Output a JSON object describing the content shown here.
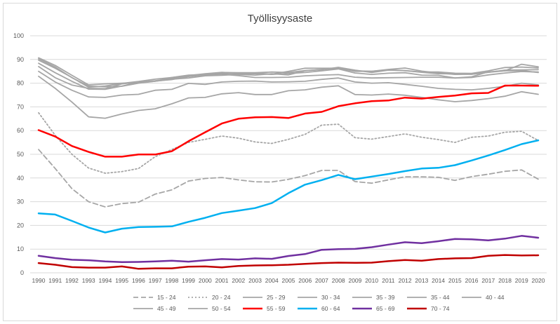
{
  "chart_data": {
    "type": "line",
    "title": "Työllisyysaste",
    "xlabel": "",
    "ylabel": "",
    "ylim": [
      0,
      100
    ],
    "yticks": [
      0,
      10,
      20,
      30,
      40,
      50,
      60,
      70,
      80,
      90,
      100
    ],
    "grid": true,
    "legend": "bottom",
    "categories": [
      "1990",
      "1991",
      "1992",
      "1993",
      "1994",
      "1995",
      "1996",
      "1997",
      "1998",
      "1999",
      "2000",
      "2001",
      "2002",
      "2003",
      "2004",
      "2005",
      "2006",
      "2007",
      "2008",
      "2009",
      "2010",
      "2011",
      "2012",
      "2013",
      "2014",
      "2015",
      "2016",
      "2017",
      "2018",
      "2019",
      "2020"
    ],
    "series": [
      {
        "name": "15 - 24",
        "color": "#a6a6a6",
        "style": "dashed",
        "values": [
          52,
          44,
          35.5,
          30,
          27.8,
          29.2,
          29.8,
          33.2,
          35,
          38.7,
          39.8,
          40.2,
          39.2,
          38.4,
          38.3,
          39.4,
          41,
          43.2,
          43.2,
          38.5,
          37.8,
          39.2,
          40.5,
          40.5,
          40.3,
          39,
          40.6,
          41.6,
          42.8,
          43.4,
          39.5
        ]
      },
      {
        "name": "20 - 24",
        "color": "#a6a6a6",
        "style": "dotted",
        "values": [
          67.5,
          58,
          50,
          44.2,
          42,
          42.7,
          44,
          49,
          52,
          55,
          56.3,
          57.7,
          56.8,
          55.2,
          54.6,
          56.3,
          58.4,
          62.3,
          62.7,
          57,
          56.4,
          57.5,
          58.6,
          57.2,
          56.2,
          55,
          57.2,
          57.7,
          59.3,
          59.7,
          55.8
        ]
      },
      {
        "name": "25 - 29",
        "color": "#a6a6a6",
        "style": "solid",
        "values": [
          82.9,
          77.8,
          72,
          65.8,
          65.2,
          67,
          68.5,
          69.2,
          71.3,
          73.8,
          74,
          75.5,
          76,
          75.2,
          75.2,
          76.8,
          77.2,
          78.3,
          78.9,
          75.2,
          75,
          75.4,
          74.9,
          74,
          73,
          72.2,
          72.7,
          73.5,
          74.5,
          76.4,
          75.3
        ]
      },
      {
        "name": "30 - 34",
        "color": "#a6a6a6",
        "style": "solid",
        "values": [
          85,
          80.5,
          77,
          74.2,
          74,
          75,
          75.3,
          77,
          77.4,
          79.9,
          79.5,
          80.5,
          80.8,
          80.9,
          80.5,
          80.6,
          80.8,
          81.6,
          82.2,
          80.5,
          80,
          80.2,
          79.5,
          78.7,
          77.8,
          77.4,
          77.2,
          77.8,
          78.7,
          80,
          79.3
        ]
      },
      {
        "name": "35 - 39",
        "color": "#a6a6a6",
        "style": "solid",
        "values": [
          87,
          82.3,
          79.2,
          77.8,
          77.7,
          79.7,
          80.4,
          80.9,
          81.5,
          82.8,
          83.5,
          83.8,
          83.2,
          82.4,
          82.4,
          82.5,
          83.1,
          83.4,
          83.6,
          82.5,
          82.2,
          82.3,
          82.4,
          82.5,
          82.5,
          82.2,
          82.4,
          83.5,
          84.3,
          84.9,
          84.7
        ]
      },
      {
        "name": "35 - 44",
        "color": "#a6a6a6",
        "style": "solid",
        "values": [
          88.4,
          84.4,
          80.8,
          77.5,
          77.4,
          78.8,
          80.4,
          81,
          82,
          83.2,
          84,
          84.6,
          84.2,
          84.3,
          83.8,
          85,
          86.3,
          86.3,
          86.3,
          85,
          85,
          85.6,
          85.3,
          84.6,
          84,
          83.9,
          83.8,
          84.6,
          85.5,
          85.6,
          85.7
        ]
      },
      {
        "name": "40 - 44",
        "color": "#a6a6a6",
        "style": "solid",
        "values": [
          89.7,
          86.3,
          82.4,
          78.3,
          78.8,
          79.9,
          80.7,
          81.7,
          82.4,
          83.4,
          83.7,
          84.5,
          84.4,
          84.4,
          84.7,
          84.5,
          85.3,
          85.7,
          86.7,
          85.5,
          84.5,
          85.5,
          85.3,
          84.7,
          84.7,
          84.2,
          84.1,
          85.2,
          86.6,
          86.8,
          86.4
        ]
      },
      {
        "name": "45 - 49",
        "color": "#a6a6a6",
        "style": "solid",
        "values": [
          90.3,
          86.8,
          82.3,
          78.8,
          78.5,
          78.7,
          80,
          80.8,
          82.4,
          83.2,
          83.6,
          84.1,
          84,
          84,
          83.7,
          84.1,
          84.5,
          85.2,
          86,
          84.3,
          83.7,
          84.2,
          84.4,
          83.4,
          83.3,
          82.2,
          82.7,
          84.8,
          85.2,
          85.3,
          84.5
        ]
      },
      {
        "name": "50 - 54",
        "color": "#a6a6a6",
        "style": "solid",
        "values": [
          90.7,
          87.5,
          83.3,
          79.3,
          79.7,
          80,
          80.2,
          80.8,
          81.7,
          82.2,
          83.1,
          83.3,
          83.7,
          83.4,
          84,
          83.5,
          85.2,
          85.8,
          86.3,
          85.2,
          85,
          85.8,
          86.4,
          85.1,
          84.3,
          83.7,
          83.8,
          84.6,
          85.2,
          88,
          86.9
        ]
      },
      {
        "name": "55 - 59",
        "color": "#ff0000",
        "style": "solid",
        "values": [
          60.2,
          57.5,
          53.5,
          51,
          49,
          49,
          49.9,
          49.9,
          51.3,
          55.5,
          59.3,
          63,
          65,
          65.6,
          65.7,
          65.3,
          67.2,
          67.9,
          70.3,
          71.5,
          72.4,
          72.7,
          73.9,
          73.5,
          74.2,
          74.8,
          75.7,
          75.9,
          79,
          79,
          78.9
        ]
      },
      {
        "name": "60 - 64",
        "color": "#00b0f0",
        "style": "solid",
        "values": [
          25.1,
          24.6,
          21.9,
          19.1,
          17,
          18.6,
          19.3,
          19.4,
          19.6,
          21.5,
          23.2,
          25.2,
          26.2,
          27.3,
          29.4,
          33.6,
          37.2,
          39.1,
          41.3,
          39.5,
          40.6,
          41.7,
          42.9,
          44,
          44.3,
          45.4,
          47.4,
          49.5,
          51.8,
          54.3,
          55.9
        ]
      },
      {
        "name": "65 - 69",
        "color": "#7030a0",
        "style": "solid",
        "values": [
          7.2,
          6.2,
          5.5,
          5.3,
          4.8,
          4.5,
          4.6,
          4.8,
          5.1,
          4.7,
          5.3,
          5.8,
          5.6,
          6.1,
          5.9,
          7.1,
          7.9,
          9.7,
          10,
          10.1,
          10.8,
          11.9,
          12.9,
          12.5,
          13.3,
          14.3,
          14.1,
          13.7,
          14.4,
          15.6,
          14.8
        ]
      },
      {
        "name": "70 - 74",
        "color": "#c00000",
        "style": "solid",
        "values": [
          4.1,
          3.4,
          2.4,
          2.2,
          2.2,
          2.7,
          1.7,
          1.9,
          1.9,
          2.6,
          2.7,
          2.3,
          2.9,
          3.1,
          3.2,
          3.4,
          3.8,
          4.1,
          4.3,
          4.2,
          4.3,
          4.9,
          5.4,
          5.1,
          5.8,
          6.1,
          6.2,
          7.2,
          7.5,
          7.3,
          7.4
        ]
      }
    ]
  }
}
